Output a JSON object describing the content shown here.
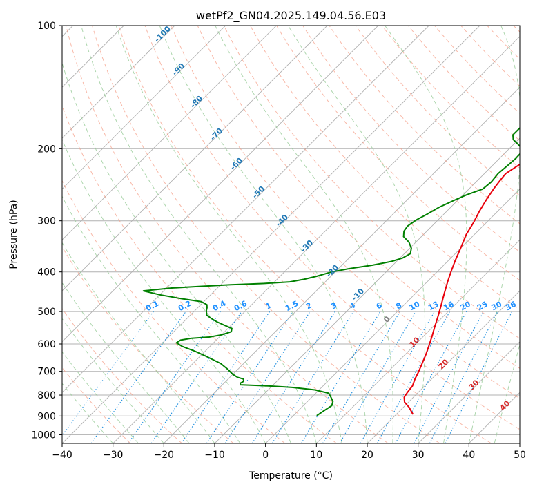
{
  "chart_data": {
    "type": "line",
    "title": "wetPf2_GN04.2025.149.04.56.E03",
    "xlabel": "Temperature (°C)",
    "ylabel": "Pressure (hPa)",
    "xlim": [
      -40,
      50
    ],
    "ylim": [
      1050,
      100
    ],
    "y_scale": "log",
    "grid": true,
    "x_ticks": [
      -40,
      -30,
      -20,
      -10,
      0,
      10,
      20,
      30,
      40,
      50
    ],
    "y_ticks": [
      100,
      200,
      300,
      400,
      500,
      600,
      700,
      800,
      900,
      1000
    ],
    "series": [
      {
        "color": "#e8000b",
        "points": [
          [
            23.3,
            892
          ],
          [
            21.2,
            858
          ],
          [
            19.2,
            832
          ],
          [
            18.2,
            810
          ],
          [
            17.9,
            790
          ],
          [
            17.6,
            760
          ],
          [
            16.7,
            730
          ],
          [
            16.1,
            705
          ],
          [
            15.1,
            670
          ],
          [
            14.0,
            635
          ],
          [
            12.9,
            605
          ],
          [
            11.7,
            575
          ],
          [
            10.5,
            548
          ],
          [
            9.0,
            515
          ],
          [
            7.5,
            485
          ],
          [
            5.7,
            452
          ],
          [
            4.1,
            424
          ],
          [
            2.8,
            401
          ],
          [
            1.4,
            376
          ],
          [
            0.0,
            350
          ],
          [
            -1.6,
            324
          ],
          [
            -2.5,
            303
          ],
          [
            -3.6,
            284
          ],
          [
            -4.5,
            266
          ],
          [
            -5.2,
            250
          ],
          [
            -5.6,
            238
          ],
          [
            -5.8,
            230
          ],
          [
            -5.0,
            220
          ],
          [
            -4.3,
            210
          ],
          [
            -2.9,
            200
          ],
          [
            -0.8,
            191
          ],
          [
            1.9,
            180
          ],
          [
            4.8,
            170
          ],
          [
            7.7,
            162
          ],
          [
            10.4,
            156
          ],
          [
            12.3,
            150
          ],
          [
            13.8,
            144
          ],
          [
            15.3,
            136
          ],
          [
            16.3,
            130
          ],
          [
            17.5,
            125
          ],
          [
            19.5,
            119
          ],
          [
            21.6,
            114
          ],
          [
            23.4,
            108
          ],
          [
            25.7,
            102
          ],
          [
            26.4,
            100
          ]
        ]
      },
      {
        "color": "#008000",
        "points": [
          [
            4.6,
            898
          ],
          [
            5.1,
            872
          ],
          [
            5.6,
            849
          ],
          [
            5.0,
            829
          ],
          [
            3.8,
            810
          ],
          [
            2.6,
            792
          ],
          [
            -0.8,
            777
          ],
          [
            -5.8,
            766
          ],
          [
            -10.8,
            760
          ],
          [
            -16.5,
            755
          ],
          [
            -16.8,
            748
          ],
          [
            -16.5,
            740
          ],
          [
            -17.0,
            731
          ],
          [
            -18.5,
            724
          ],
          [
            -20.0,
            712
          ],
          [
            -22.2,
            690
          ],
          [
            -24.5,
            670
          ],
          [
            -28.5,
            645
          ],
          [
            -32.0,
            625
          ],
          [
            -35.5,
            608
          ],
          [
            -37.3,
            596
          ],
          [
            -37.0,
            587
          ],
          [
            -35.2,
            581
          ],
          [
            -32.0,
            577
          ],
          [
            -30.0,
            570
          ],
          [
            -28.7,
            560
          ],
          [
            -29.2,
            550
          ],
          [
            -31.3,
            540
          ],
          [
            -33.4,
            530
          ],
          [
            -35.2,
            520
          ],
          [
            -36.8,
            510
          ],
          [
            -37.7,
            498
          ],
          [
            -38.2,
            489
          ],
          [
            -38.8,
            481
          ],
          [
            -40.5,
            473
          ],
          [
            -45.0,
            465
          ],
          [
            -50.0,
            455
          ],
          [
            -54.0,
            445
          ],
          [
            -49.0,
            438
          ],
          [
            -44.0,
            434
          ],
          [
            -38.0,
            430
          ],
          [
            -32.0,
            427
          ],
          [
            -27.0,
            423
          ],
          [
            -24.7,
            417
          ],
          [
            -22.8,
            410
          ],
          [
            -20.7,
            400
          ],
          [
            -18.0,
            393
          ],
          [
            -14.0,
            385
          ],
          [
            -11.0,
            377
          ],
          [
            -9.5,
            370
          ],
          [
            -8.8,
            361
          ],
          [
            -9.7,
            350
          ],
          [
            -11.4,
            338
          ],
          [
            -13.5,
            328
          ],
          [
            -14.5,
            318
          ],
          [
            -14.8,
            309
          ],
          [
            -14.3,
            299
          ],
          [
            -13.3,
            289
          ],
          [
            -12.3,
            278
          ],
          [
            -10.8,
            268
          ],
          [
            -9.3,
            259
          ],
          [
            -7.3,
            251
          ],
          [
            -7.0,
            241
          ],
          [
            -7.3,
            230
          ],
          [
            -7.0,
            219
          ],
          [
            -6.8,
            211
          ],
          [
            -6.9,
            204
          ],
          [
            -7.8,
            199
          ],
          [
            -9.5,
            194
          ],
          [
            -11.0,
            190
          ],
          [
            -12.0,
            185
          ],
          [
            -12.0,
            178
          ],
          [
            -11.5,
            170
          ],
          [
            -10.8,
            163
          ],
          [
            -10.8,
            156
          ],
          [
            -10.5,
            150
          ],
          [
            -10.0,
            145
          ],
          [
            -9.2,
            139
          ],
          [
            -7.8,
            133
          ],
          [
            -5.8,
            126
          ],
          [
            -4.0,
            120
          ],
          [
            -2.7,
            114
          ],
          [
            -2.0,
            108
          ],
          [
            -0.8,
            102
          ],
          [
            -0.4,
            100
          ]
        ]
      }
    ],
    "dry_adiabat_labels": [
      "-100",
      "-90",
      "-80",
      "-70",
      "-60",
      "-50",
      "-40",
      "-30",
      "-20",
      "-10"
    ],
    "moist_adiabat_labels": [
      "0",
      "10",
      "20",
      "30",
      "40"
    ],
    "mixing_ratio_labels": [
      "0.1",
      "0.2",
      "0.4",
      "0.6",
      "1",
      "1.5",
      "2",
      "3",
      "4",
      "6",
      "8",
      "10",
      "13",
      "16",
      "20",
      "25",
      "30",
      "36"
    ],
    "colors": {
      "isotherm": "#b0b0b0",
      "dry_adiabat": "#f5a08a",
      "moist_adiabat": "#99cc99",
      "mixing_ratio": "#1f8fdf",
      "dry_label": "#1f77b4",
      "mixing_label": "#1e90ff",
      "moist_label_zero": "#808080",
      "moist_label": "#d62728"
    }
  }
}
